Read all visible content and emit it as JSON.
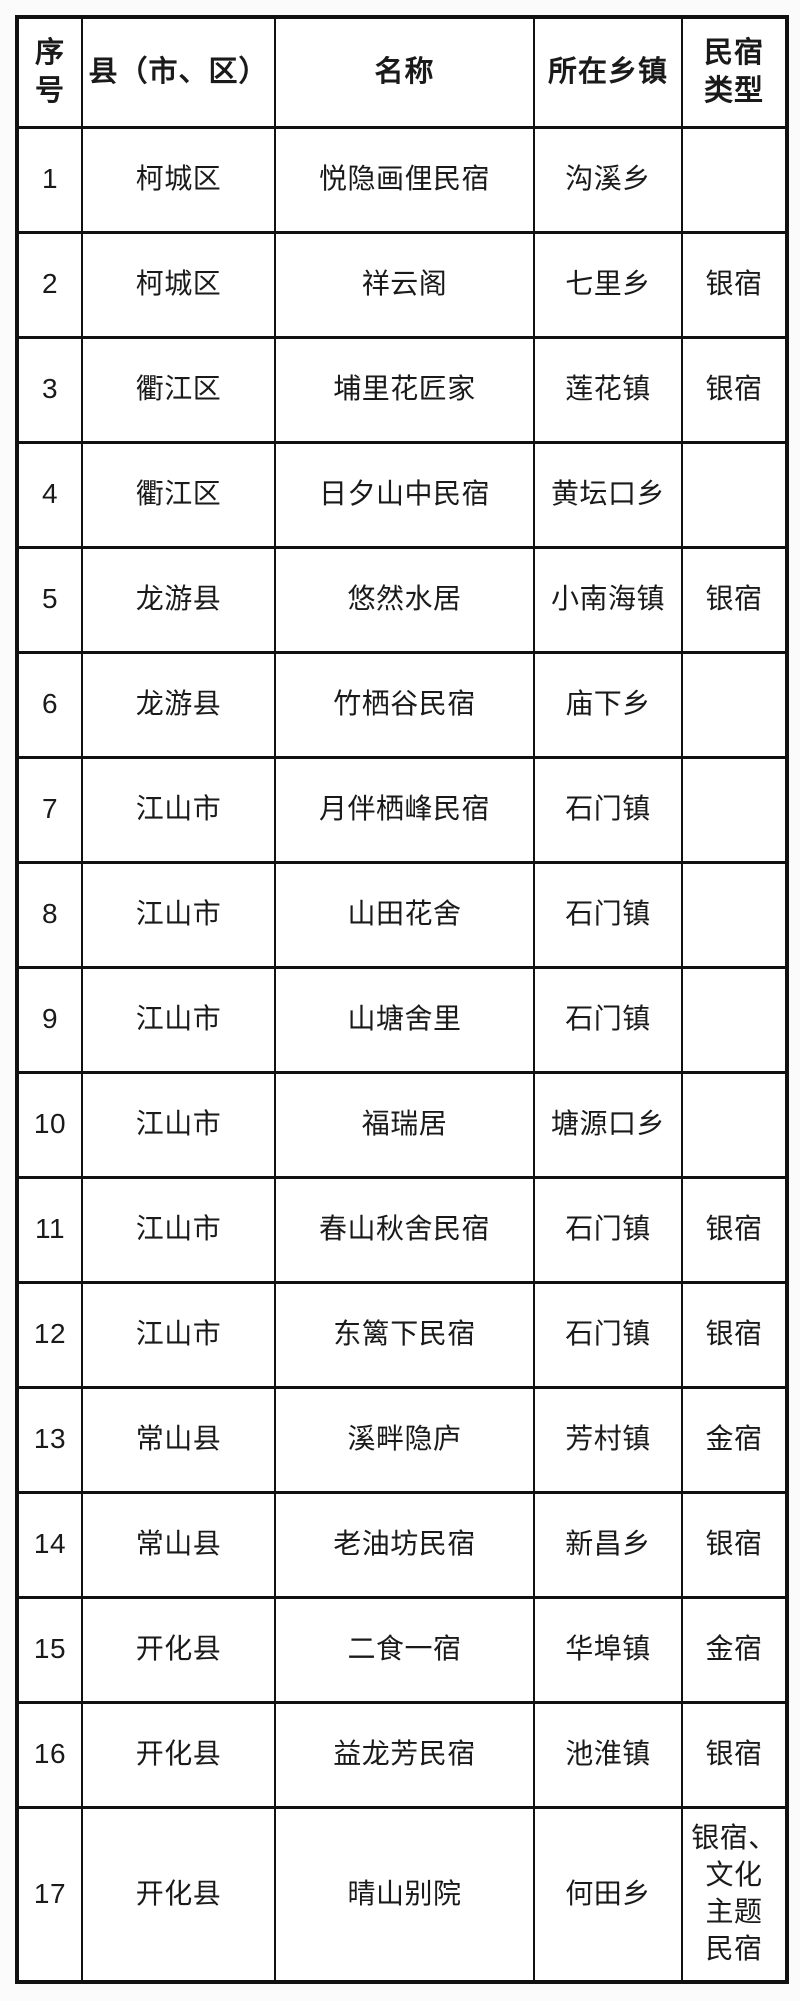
{
  "table": {
    "headers": {
      "index": "序\n号",
      "county": "县（市、区）",
      "name": "名称",
      "township": "所在乡镇",
      "type": "民宿\n类型"
    },
    "rows": [
      {
        "index": "1",
        "county": "柯城区",
        "name": "悦隐画俚民宿",
        "township": "沟溪乡",
        "type": ""
      },
      {
        "index": "2",
        "county": "柯城区",
        "name": "祥云阁",
        "township": "七里乡",
        "type": "银宿"
      },
      {
        "index": "3",
        "county": "衢江区",
        "name": "埔里花匠家",
        "township": "莲花镇",
        "type": "银宿"
      },
      {
        "index": "4",
        "county": "衢江区",
        "name": "日夕山中民宿",
        "township": "黄坛口乡",
        "type": ""
      },
      {
        "index": "5",
        "county": "龙游县",
        "name": "悠然水居",
        "township": "小南海镇",
        "type": "银宿"
      },
      {
        "index": "6",
        "county": "龙游县",
        "name": "竹栖谷民宿",
        "township": "庙下乡",
        "type": ""
      },
      {
        "index": "7",
        "county": "江山市",
        "name": "月伴栖峰民宿",
        "township": "石门镇",
        "type": ""
      },
      {
        "index": "8",
        "county": "江山市",
        "name": "山田花舍",
        "township": "石门镇",
        "type": ""
      },
      {
        "index": "9",
        "county": "江山市",
        "name": "山塘舍里",
        "township": "石门镇",
        "type": ""
      },
      {
        "index": "10",
        "county": "江山市",
        "name": "福瑞居",
        "township": "塘源口乡",
        "type": ""
      },
      {
        "index": "11",
        "county": "江山市",
        "name": "春山秋舍民宿",
        "township": "石门镇",
        "type": "银宿"
      },
      {
        "index": "12",
        "county": "江山市",
        "name": "东篱下民宿",
        "township": "石门镇",
        "type": "银宿"
      },
      {
        "index": "13",
        "county": "常山县",
        "name": "溪畔隐庐",
        "township": "芳村镇",
        "type": "金宿"
      },
      {
        "index": "14",
        "county": "常山县",
        "name": "老油坊民宿",
        "township": "新昌乡",
        "type": "银宿"
      },
      {
        "index": "15",
        "county": "开化县",
        "name": "二食一宿",
        "township": "华埠镇",
        "type": "金宿"
      },
      {
        "index": "16",
        "county": "开化县",
        "name": "益龙芳民宿",
        "township": "池淮镇",
        "type": "银宿"
      },
      {
        "index": "17",
        "county": "开化县",
        "name": "晴山别院",
        "township": "何田乡",
        "type": "银宿、\n文化\n主题\n民宿"
      }
    ]
  },
  "colors": {
    "border": "#111111",
    "text": "#1a1a1a",
    "cell_background": "#ffffff",
    "page_background": "#fbfbfb"
  }
}
